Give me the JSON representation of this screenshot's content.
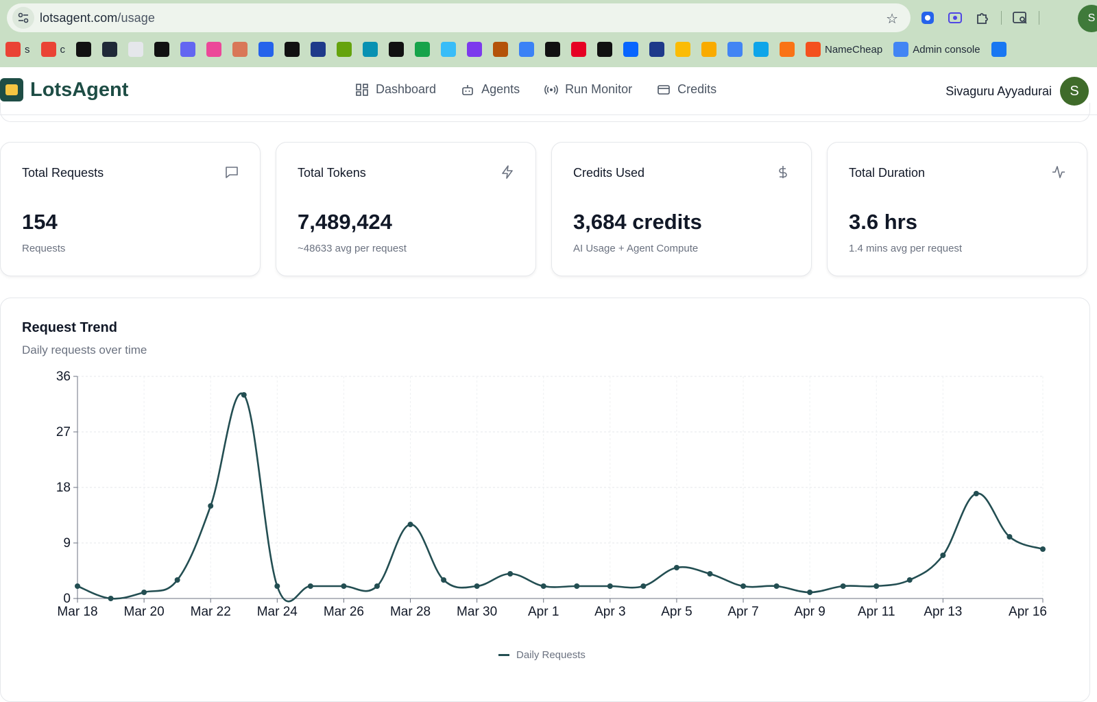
{
  "browser": {
    "url_domain": "lotsagent.com",
    "url_path": "/usage",
    "profile_initial": "S",
    "bookmarks": [
      {
        "icon": "gmail-icon",
        "label": "s",
        "color": "#ea4335"
      },
      {
        "icon": "gmail-icon",
        "label": "c",
        "color": "#ea4335"
      },
      {
        "icon": "globe-icon",
        "label": "",
        "color": "#111111"
      },
      {
        "icon": "bolt-app-icon",
        "label": "",
        "color": "#1f2937"
      },
      {
        "icon": "openai-icon",
        "label": "",
        "color": "#e5e7eb"
      },
      {
        "icon": "cursor-icon",
        "label": "",
        "color": "#111111"
      },
      {
        "icon": "bird-icon",
        "label": "",
        "color": "#6366f1"
      },
      {
        "icon": "flower-icon",
        "label": "",
        "color": "#ec4899"
      },
      {
        "icon": "claude-icon",
        "label": "",
        "color": "#d97757"
      },
      {
        "icon": "app-l-icon",
        "label": "",
        "color": "#2563eb"
      },
      {
        "icon": "app-l-icon",
        "label": "",
        "color": "#111111"
      },
      {
        "icon": "app-l-icon",
        "label": "",
        "color": "#1e3a8a"
      },
      {
        "icon": "app-l-icon",
        "label": "",
        "color": "#65a30d"
      },
      {
        "icon": "app-l-icon",
        "label": "",
        "color": "#0891b2"
      },
      {
        "icon": "app-l-icon",
        "label": "",
        "color": "#111111"
      },
      {
        "icon": "app-l-icon",
        "label": "",
        "color": "#16a34a"
      },
      {
        "icon": "app-l-icon",
        "label": "",
        "color": "#38bdf8"
      },
      {
        "icon": "app-l-icon",
        "label": "",
        "color": "#7c3aed"
      },
      {
        "icon": "fox-icon",
        "label": "",
        "color": "#b45309"
      },
      {
        "icon": "c-circle-icon",
        "label": "",
        "color": "#3b82f6"
      },
      {
        "icon": "x-icon",
        "label": "",
        "color": "#111111"
      },
      {
        "icon": "pinterest-icon",
        "label": "",
        "color": "#e60023"
      },
      {
        "icon": "v-icon",
        "label": "",
        "color": "#111111"
      },
      {
        "icon": "meta-icon",
        "label": "",
        "color": "#0866ff"
      },
      {
        "icon": "eyes-icon",
        "label": "",
        "color": "#1e3a8a"
      },
      {
        "icon": "google-ads-icon",
        "label": "",
        "color": "#fbbc04"
      },
      {
        "icon": "analytics-icon",
        "label": "",
        "color": "#f9ab00"
      },
      {
        "icon": "bar-chart-icon",
        "label": "",
        "color": "#4285f4"
      },
      {
        "icon": "bing-icon",
        "label": "",
        "color": "#0ea5e9"
      },
      {
        "icon": "u-icon",
        "label": "",
        "color": "#f97316"
      },
      {
        "icon": "namecheap-icon",
        "label": "NameCheap",
        "color": "#f4511e"
      },
      {
        "icon": "google-icon",
        "label": "Admin console",
        "color": "#4285f4"
      },
      {
        "icon": "facebook-icon",
        "label": "",
        "color": "#1877f2"
      }
    ]
  },
  "app": {
    "brand": "LotsAgent",
    "nav": [
      {
        "label": "Dashboard",
        "icon": "dashboard-icon"
      },
      {
        "label": "Agents",
        "icon": "robot-icon"
      },
      {
        "label": "Run Monitor",
        "icon": "broadcast-icon"
      },
      {
        "label": "Credits",
        "icon": "credit-card-icon"
      }
    ],
    "user_name": "Sivaguru Ayyadurai",
    "user_initial": "S"
  },
  "stats": [
    {
      "title": "Total Requests",
      "value": "154",
      "sub": "Requests",
      "icon": "message-square-icon"
    },
    {
      "title": "Total Tokens",
      "value": "7,489,424",
      "sub": "~48633 avg per request",
      "icon": "zap-icon"
    },
    {
      "title": "Credits Used",
      "value": "3,684 credits",
      "sub": "AI Usage + Agent Compute",
      "icon": "dollar-icon"
    },
    {
      "title": "Total Duration",
      "value": "3.6 hrs",
      "sub": "1.4 mins avg per request",
      "icon": "activity-icon"
    }
  ],
  "trend": {
    "title": "Request Trend",
    "subtitle": "Daily requests over time",
    "legend": "Daily Requests",
    "line_color": "#234e52"
  },
  "chart_data": {
    "type": "line",
    "title": "Request Trend",
    "subtitle": "Daily requests over time",
    "xlabel": "",
    "ylabel": "",
    "ylim": [
      0,
      36
    ],
    "yticks": [
      "0",
      "9",
      "18",
      "27",
      "36"
    ],
    "x": [
      "Mar 18",
      "Mar 19",
      "Mar 20",
      "Mar 21",
      "Mar 22",
      "Mar 23",
      "Mar 24",
      "Mar 25",
      "Mar 26",
      "Mar 27",
      "Mar 28",
      "Mar 29",
      "Mar 30",
      "Mar 31",
      "Apr 1",
      "Apr 2",
      "Apr 3",
      "Apr 4",
      "Apr 5",
      "Apr 6",
      "Apr 7",
      "Apr 8",
      "Apr 9",
      "Apr 10",
      "Apr 11",
      "Apr 12",
      "Apr 13",
      "Apr 14",
      "Apr 15",
      "Apr 16"
    ],
    "xtick_labels": [
      "Mar 18",
      "Mar 20",
      "Mar 22",
      "Mar 24",
      "Mar 26",
      "Mar 28",
      "Mar 30",
      "Apr 1",
      "Apr 3",
      "Apr 5",
      "Apr 7",
      "Apr 9",
      "Apr 11",
      "Apr 13",
      "Apr 16"
    ],
    "series": [
      {
        "name": "Daily Requests",
        "values": [
          2,
          0,
          1,
          3,
          15,
          33,
          2,
          2,
          2,
          2,
          12,
          3,
          2,
          4,
          2,
          2,
          2,
          2,
          5,
          4,
          2,
          2,
          1,
          2,
          2,
          3,
          7,
          17,
          10,
          8
        ]
      }
    ],
    "grid": true,
    "legend_position": "bottom"
  }
}
